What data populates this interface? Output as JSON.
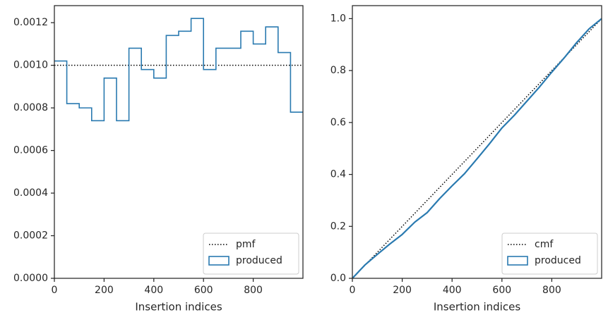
{
  "chart_data": [
    {
      "type": "histogram",
      "xlabel": "Insertion indices",
      "ylabel": "",
      "xlim": [
        0,
        1000
      ],
      "ylim": [
        0,
        0.00128
      ],
      "xticks": [
        0,
        200,
        400,
        600,
        800
      ],
      "yticks": [
        0.0,
        0.0002,
        0.0004,
        0.0006,
        0.0008,
        0.001,
        0.0012
      ],
      "xtick_labels": [
        "0",
        "200",
        "400",
        "600",
        "800"
      ],
      "ytick_labels": [
        "0.0000",
        "0.0002",
        "0.0004",
        "0.0006",
        "0.0008",
        "0.0010",
        "0.0012"
      ],
      "legend": {
        "location": "lower-right",
        "entries": [
          {
            "label": "pmf",
            "style": "dotted-line",
            "color": "#000000"
          },
          {
            "label": "produced",
            "style": "step-outline",
            "color": "#2a7ab0"
          }
        ]
      },
      "reference_line": {
        "label": "pmf",
        "y": 0.001
      },
      "series": [
        {
          "name": "produced",
          "bin_edges": [
            0,
            50,
            100,
            150,
            200,
            250,
            300,
            350,
            400,
            450,
            500,
            550,
            600,
            650,
            700,
            750,
            800,
            850,
            900,
            950,
            1000
          ],
          "values": [
            0.00102,
            0.00082,
            0.0008,
            0.00074,
            0.00094,
            0.00074,
            0.00108,
            0.00098,
            0.00094,
            0.00114,
            0.00116,
            0.00122,
            0.00098,
            0.00108,
            0.00108,
            0.00116,
            0.0011,
            0.00118,
            0.00106,
            0.00078
          ]
        }
      ]
    },
    {
      "type": "line",
      "xlabel": "Insertion indices",
      "ylabel": "",
      "xlim": [
        0,
        1000
      ],
      "ylim": [
        0,
        1.05
      ],
      "xticks": [
        0,
        200,
        400,
        600,
        800
      ],
      "yticks": [
        0.0,
        0.2,
        0.4,
        0.6,
        0.8,
        1.0
      ],
      "xtick_labels": [
        "0",
        "200",
        "400",
        "600",
        "800"
      ],
      "ytick_labels": [
        "0.0",
        "0.2",
        "0.4",
        "0.6",
        "0.8",
        "1.0"
      ],
      "legend": {
        "location": "lower-right",
        "entries": [
          {
            "label": "cmf",
            "style": "dotted-line",
            "color": "#000000"
          },
          {
            "label": "produced",
            "style": "step-outline",
            "color": "#2a7ab0"
          }
        ]
      },
      "reference_line": {
        "label": "cmf",
        "x": [
          0,
          1000
        ],
        "y": [
          0,
          1
        ]
      },
      "series": [
        {
          "name": "produced",
          "x": [
            0,
            50,
            100,
            150,
            200,
            250,
            300,
            350,
            400,
            450,
            500,
            550,
            600,
            650,
            700,
            750,
            800,
            850,
            900,
            950,
            1000
          ],
          "y": [
            0,
            0.051,
            0.092,
            0.132,
            0.169,
            0.216,
            0.253,
            0.307,
            0.356,
            0.403,
            0.46,
            0.518,
            0.579,
            0.628,
            0.682,
            0.736,
            0.794,
            0.849,
            0.908,
            0.961,
            1.0
          ]
        }
      ]
    }
  ]
}
